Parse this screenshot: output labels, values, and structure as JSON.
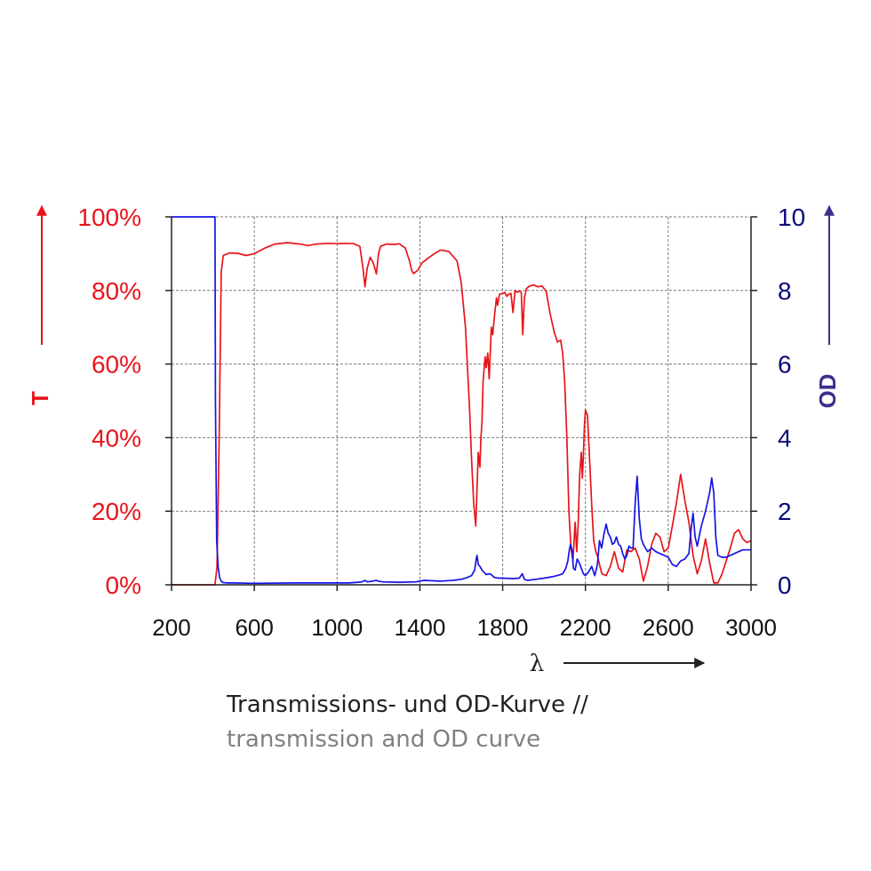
{
  "chart_data": {
    "type": "line",
    "xlabel": "λ",
    "xlim": [
      200,
      3000
    ],
    "x_ticks": [
      "200",
      "600",
      "1000",
      "1400",
      "1800",
      "2200",
      "2600",
      "3000"
    ],
    "x_tick_values": [
      200,
      600,
      1000,
      1400,
      1800,
      2200,
      2600,
      3000
    ],
    "y_left": {
      "label": "T",
      "lim": [
        0,
        100
      ],
      "ticks": [
        "0%",
        "20%",
        "40%",
        "60%",
        "80%",
        "100%"
      ],
      "tick_values": [
        0,
        20,
        40,
        60,
        80,
        100
      ]
    },
    "y_right": {
      "label": "OD",
      "lim": [
        0,
        10
      ],
      "ticks": [
        "0",
        "2",
        "4",
        "6",
        "8",
        "10"
      ],
      "tick_values": [
        0,
        2,
        4,
        6,
        8,
        10
      ]
    },
    "grid": true,
    "series": [
      {
        "axis": "left",
        "color": "#e8141b",
        "x": [
          200,
          410,
          420,
          430,
          440,
          450,
          480,
          520,
          560,
          600,
          650,
          700,
          760,
          820,
          860,
          900,
          960,
          1000,
          1040,
          1080,
          1110,
          1125,
          1135,
          1145,
          1160,
          1175,
          1190,
          1200,
          1210,
          1240,
          1280,
          1300,
          1330,
          1350,
          1360,
          1370,
          1390,
          1410,
          1440,
          1470,
          1500,
          1540,
          1580,
          1600,
          1620,
          1640,
          1650,
          1660,
          1670,
          1676,
          1682,
          1690,
          1695,
          1700,
          1705,
          1715,
          1720,
          1728,
          1735,
          1745,
          1752,
          1760,
          1770,
          1775,
          1785,
          1800,
          1810,
          1820,
          1830,
          1840,
          1850,
          1860,
          1870,
          1880,
          1890,
          1897,
          1905,
          1915,
          1930,
          1950,
          1970,
          1990,
          2010,
          2030,
          2050,
          2065,
          2080,
          2090,
          2100,
          2110,
          2120,
          2130,
          2140,
          2150,
          2158,
          2165,
          2172,
          2180,
          2185,
          2190,
          2195,
          2200,
          2210,
          2215,
          2222,
          2230,
          2240,
          2250,
          2260,
          2270,
          2280,
          2300,
          2320,
          2340,
          2360,
          2380,
          2400,
          2420,
          2440,
          2460,
          2480,
          2500,
          2520,
          2540,
          2560,
          2580,
          2600,
          2620,
          2640,
          2660,
          2680,
          2700,
          2720,
          2740,
          2760,
          2780,
          2800,
          2820,
          2840,
          2860,
          2880,
          2900,
          2920,
          2940,
          2960,
          2980,
          3000
        ],
        "y": [
          0,
          0,
          5,
          40,
          85,
          89.5,
          90.2,
          90.1,
          89.5,
          90,
          91.5,
          92.6,
          93,
          92.6,
          92.2,
          92.6,
          92.8,
          92.7,
          92.8,
          92.7,
          92,
          86,
          81,
          86,
          89,
          87.5,
          84.5,
          90,
          92,
          92.6,
          92.5,
          92.7,
          91.5,
          88,
          85.5,
          84.6,
          85.5,
          87.5,
          88.8,
          90,
          91,
          90.6,
          88,
          82,
          70,
          48,
          34,
          22,
          16,
          26,
          36,
          32,
          40,
          44,
          55,
          62,
          59,
          63,
          56,
          70,
          68,
          73,
          78,
          76,
          79,
          79.2,
          79.5,
          78.4,
          79,
          79.2,
          74,
          80,
          79.5,
          79.8,
          79.6,
          68,
          78,
          80.5,
          81.2,
          81.5,
          81,
          81.2,
          79.8,
          73.5,
          68.5,
          66,
          66.5,
          63,
          55,
          40,
          20,
          10,
          6.5,
          17,
          9,
          17,
          30,
          36,
          29,
          35,
          43,
          47.5,
          46,
          40,
          32,
          22,
          12,
          9,
          7.5,
          5,
          3,
          2.5,
          5,
          9,
          4.5,
          3.5,
          9.5,
          9,
          10,
          7,
          1,
          5,
          11,
          14,
          13,
          9,
          10,
          16,
          22.5,
          30,
          23,
          17,
          8,
          3,
          6.5,
          12.5,
          6,
          0.5,
          0.5,
          3,
          6.5,
          10,
          14,
          15,
          12.5,
          11.5,
          12
        ]
      },
      {
        "axis": "right",
        "color": "#1414e6",
        "x": [
          200,
          410,
          412,
          418,
          425,
          432,
          440,
          450,
          470,
          500,
          600,
          800,
          1000,
          1060,
          1100,
          1120,
          1135,
          1145,
          1170,
          1190,
          1200,
          1220,
          1300,
          1380,
          1420,
          1500,
          1560,
          1600,
          1630,
          1650,
          1665,
          1672,
          1676,
          1682,
          1690,
          1700,
          1720,
          1740,
          1760,
          1780,
          1800,
          1850,
          1880,
          1895,
          1905,
          1920,
          1960,
          2000,
          2040,
          2070,
          2090,
          2105,
          2115,
          2122,
          2128,
          2135,
          2142,
          2150,
          2160,
          2170,
          2180,
          2190,
          2200,
          2215,
          2230,
          2245,
          2258,
          2268,
          2278,
          2290,
          2300,
          2310,
          2320,
          2330,
          2340,
          2350,
          2360,
          2370,
          2380,
          2390,
          2400,
          2410,
          2420,
          2430,
          2440,
          2450,
          2460,
          2470,
          2480,
          2500,
          2520,
          2540,
          2560,
          2580,
          2600,
          2620,
          2640,
          2660,
          2680,
          2700,
          2710,
          2720,
          2730,
          2740,
          2760,
          2780,
          2800,
          2810,
          2820,
          2830,
          2840,
          2860,
          2880,
          2900,
          2920,
          2940,
          2960,
          2980,
          3000
        ],
        "y": [
          10,
          10,
          5,
          1.2,
          0.5,
          0.2,
          0.1,
          0.06,
          0.05,
          0.05,
          0.04,
          0.05,
          0.05,
          0.05,
          0.07,
          0.08,
          0.12,
          0.08,
          0.1,
          0.12,
          0.1,
          0.08,
          0.07,
          0.08,
          0.12,
          0.1,
          0.12,
          0.15,
          0.2,
          0.25,
          0.4,
          0.7,
          0.8,
          0.55,
          0.5,
          0.4,
          0.28,
          0.3,
          0.2,
          0.18,
          0.18,
          0.17,
          0.18,
          0.3,
          0.15,
          0.12,
          0.15,
          0.18,
          0.22,
          0.26,
          0.3,
          0.45,
          0.65,
          0.95,
          1.1,
          0.95,
          0.45,
          0.4,
          0.7,
          0.6,
          0.45,
          0.3,
          0.25,
          0.35,
          0.5,
          0.25,
          0.55,
          1.2,
          1,
          1.4,
          1.65,
          1.4,
          1.3,
          1.1,
          1.15,
          1.3,
          1.1,
          1.05,
          0.85,
          0.7,
          0.8,
          1.05,
          1,
          1,
          2.2,
          2.95,
          1.8,
          1.25,
          1.1,
          0.9,
          1,
          0.9,
          0.85,
          0.8,
          0.75,
          0.55,
          0.5,
          0.65,
          0.7,
          0.85,
          1.5,
          1.95,
          1.3,
          1.05,
          1.6,
          2,
          2.5,
          2.9,
          2.5,
          1.3,
          0.8,
          0.75,
          0.75,
          0.8,
          0.85,
          0.9,
          0.95,
          0.95,
          0.95
        ]
      }
    ]
  },
  "caption": {
    "line1": "Transmissions- und OD-Kurve //",
    "line2": "transmission and OD curve"
  }
}
